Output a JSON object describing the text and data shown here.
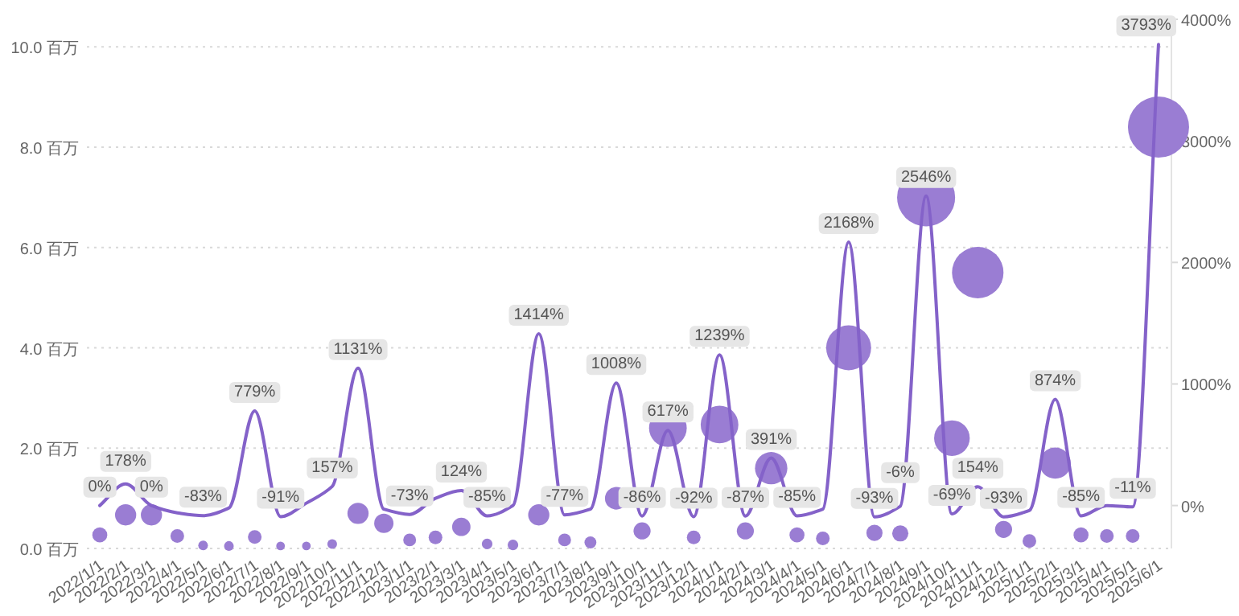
{
  "chart_data": {
    "type": "bubble",
    "categories": [
      "2022/1/1",
      "2022/2/1",
      "2022/3/1",
      "2022/4/1",
      "2022/5/1",
      "2022/6/1",
      "2022/7/1",
      "2022/8/1",
      "2022/9/1",
      "2022/10/1",
      "2022/11/1",
      "2022/12/1",
      "2023/1/1",
      "2023/2/1",
      "2023/3/1",
      "2023/4/1",
      "2023/5/1",
      "2023/6/1",
      "2023/7/1",
      "2023/8/1",
      "2023/9/1",
      "2023/10/1",
      "2023/11/1",
      "2023/12/1",
      "2024/1/1",
      "2024/2/1",
      "2024/3/1",
      "2024/4/1",
      "2024/5/1",
      "2024/6/1",
      "2024/7/1",
      "2024/8/1",
      "2024/9/1",
      "2024/10/1",
      "2024/11/1",
      "2024/12/1",
      "2025/1/1",
      "2025/2/1",
      "2025/3/1",
      "2025/4/1",
      "2025/5/1",
      "2025/6/1"
    ],
    "series": [
      {
        "type": "bubble",
        "color": "#9a7dd3",
        "values": [
          0.27,
          0.67,
          0.67,
          0.25,
          0.06,
          0.05,
          0.23,
          0.05,
          0.05,
          0.09,
          0.7,
          0.5,
          0.17,
          0.22,
          0.43,
          0.09,
          0.07,
          0.67,
          0.17,
          0.12,
          1.0,
          0.35,
          2.4,
          0.22,
          2.47,
          0.35,
          1.6,
          0.27,
          0.2,
          4.0,
          0.31,
          0.3,
          7.0,
          2.2,
          5.5,
          0.38,
          0.15,
          1.7,
          0.27,
          0.25,
          0.25,
          8.4
        ],
        "sizes": [
          0.06,
          0.12,
          0.12,
          0.05,
          0.025,
          0.025,
          0.05,
          0.02,
          0.02,
          0.025,
          0.12,
          0.1,
          0.044,
          0.05,
          0.09,
          0.03,
          0.03,
          0.12,
          0.044,
          0.038,
          0.136,
          0.078,
          0.38,
          0.05,
          0.38,
          0.078,
          0.28,
          0.06,
          0.05,
          0.54,
          0.07,
          0.07,
          0.9,
          0.34,
          0.71,
          0.078,
          0.05,
          0.26,
          0.06,
          0.05,
          0.05,
          1
        ]
      },
      {
        "type": "line",
        "axis": "y2",
        "color": "#8462c9",
        "values": [
          0,
          178,
          0,
          -60,
          -83,
          -20,
          779,
          -91,
          20,
          157,
          1131,
          -30,
          -73,
          60,
          124,
          -85,
          0,
          1414,
          -77,
          -30,
          1008,
          -86,
          617,
          -92,
          1239,
          -87,
          391,
          -85,
          -30,
          2168,
          -93,
          -6,
          2546,
          -69,
          154,
          -93,
          -40,
          874,
          -85,
          0,
          -11,
          3793
        ],
        "value_labels": [
          "0%",
          "178%",
          "0%",
          null,
          "-83%",
          null,
          "779%",
          "-91%",
          null,
          "157%",
          "1131%",
          null,
          "-73%",
          null,
          "124%",
          "-85%",
          null,
          "1414%",
          "-77%",
          null,
          "1008%",
          "-86%",
          "617%",
          "-92%",
          "1239%",
          "-87%",
          "391%",
          "-85%",
          null,
          "2168%",
          "-93%",
          "-6%",
          "2546%",
          "-69%",
          "154%",
          "-93%",
          null,
          "874%",
          "-85%",
          null,
          "-11%",
          "3793%"
        ]
      }
    ],
    "ylim": [
      0,
      10.55
    ],
    "yticks": [
      {
        "value": 0,
        "label": "0.0 百万"
      },
      {
        "value": 2,
        "label": "2.0 百万"
      },
      {
        "value": 4,
        "label": "4.0 百万"
      },
      {
        "value": 6,
        "label": "6.0 百万"
      },
      {
        "value": 8,
        "label": "8.0 百万"
      },
      {
        "value": 10,
        "label": "10.0 百万"
      }
    ],
    "y2lim": [
      -353,
      4000
    ],
    "y2ticks": [
      {
        "value": 0,
        "label": "0%"
      },
      {
        "value": 1000,
        "label": "1000%"
      },
      {
        "value": 2000,
        "label": "2000%"
      },
      {
        "value": 3000,
        "label": "3000%"
      },
      {
        "value": 4000,
        "label": "4000%"
      }
    ],
    "grid": "y"
  }
}
